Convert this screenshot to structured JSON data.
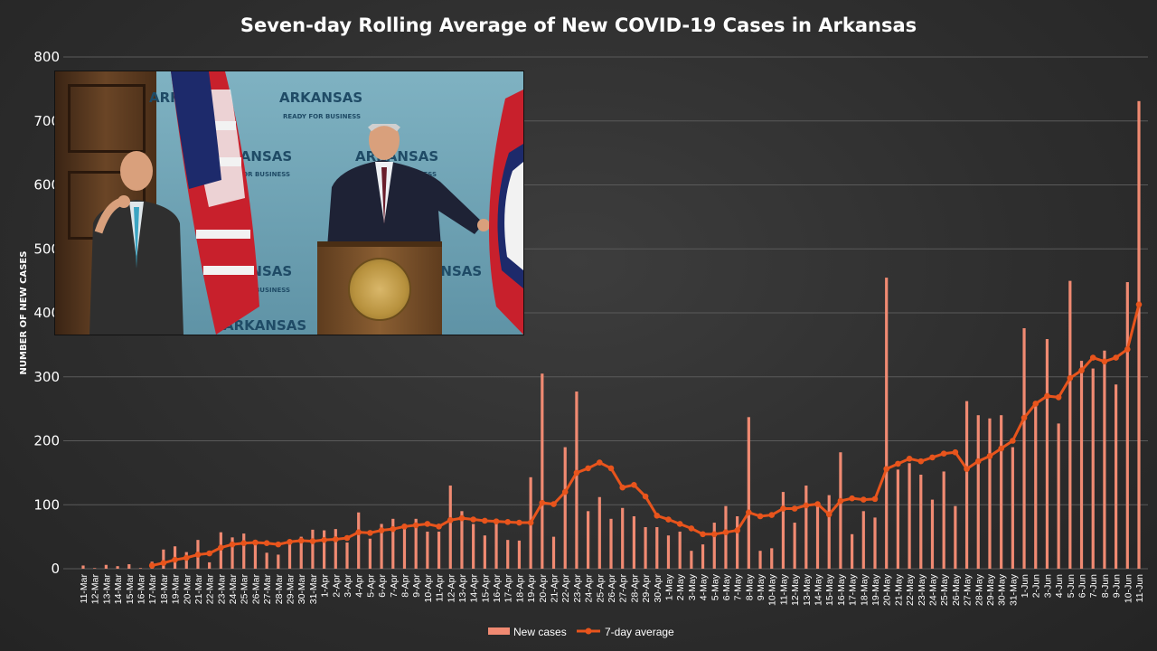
{
  "chart_data": {
    "type": "bar+line",
    "title": "Seven-day Rolling Average of New COVID-19 Cases in Arkansas",
    "ylabel": "NUMBER OF NEW CASES",
    "xlabel": "",
    "ylim": [
      0,
      800
    ],
    "yticks": [
      0,
      100,
      200,
      300,
      400,
      500,
      600,
      700,
      800
    ],
    "grid": true,
    "legend_placement": "bottom",
    "categories": [
      "11-Mar",
      "12-Mar",
      "13-Mar",
      "14-Mar",
      "15-Mar",
      "16-Mar",
      "17-Mar",
      "18-Mar",
      "19-Mar",
      "20-Mar",
      "21-Mar",
      "22-Mar",
      "23-Mar",
      "24-Mar",
      "25-Mar",
      "26-Mar",
      "27-Mar",
      "28-Mar",
      "29-Mar",
      "30-Mar",
      "31-Mar",
      "1-Apr",
      "2-Apr",
      "3-Apr",
      "4-Apr",
      "5-Apr",
      "6-Apr",
      "7-Apr",
      "8-Apr",
      "9-Apr",
      "10-Apr",
      "11-Apr",
      "12-Apr",
      "13-Apr",
      "14-Apr",
      "15-Apr",
      "16-Apr",
      "17-Apr",
      "18-Apr",
      "19-Apr",
      "20-Apr",
      "21-Apr",
      "22-Apr",
      "23-Apr",
      "24-Apr",
      "25-Apr",
      "26-Apr",
      "27-Apr",
      "28-Apr",
      "29-Apr",
      "30-Apr",
      "1-May",
      "2-May",
      "3-May",
      "4-May",
      "5-May",
      "6-May",
      "7-May",
      "8-May",
      "9-May",
      "10-May",
      "11-May",
      "12-May",
      "13-May",
      "14-May",
      "15-May",
      "16-May",
      "17-May",
      "18-May",
      "19-May",
      "20-May",
      "21-May",
      "22-May",
      "23-May",
      "24-May",
      "25-May",
      "26-May",
      "27-May",
      "28-May",
      "29-May",
      "30-May",
      "31-May",
      "1-Jun",
      "2-Jun",
      "3-Jun",
      "4-Jun",
      "5-Jun",
      "6-Jun",
      "7-Jun",
      "8-Jun",
      "9-Jun",
      "10-Jun",
      "11-Jun"
    ],
    "series": [
      {
        "name": "New cases",
        "kind": "bar",
        "color": "#f08a72",
        "values": [
          5,
          1,
          6,
          4,
          7,
          1,
          11,
          30,
          35,
          26,
          45,
          10,
          57,
          49,
          55,
          43,
          25,
          22,
          45,
          50,
          61,
          60,
          62,
          41,
          88,
          47,
          70,
          78,
          65,
          78,
          58,
          58,
          130,
          90,
          70,
          52,
          72,
          45,
          44,
          143,
          305,
          50,
          190,
          277,
          90,
          112,
          78,
          95,
          82,
          65,
          65,
          52,
          58,
          28,
          38,
          72,
          98,
          82,
          237,
          28,
          32,
          120,
          72,
          130,
          98,
          115,
          182,
          54,
          90,
          80,
          455,
          155,
          165,
          147,
          108,
          152,
          98,
          262,
          240,
          235,
          240,
          190,
          376,
          260,
          359,
          227,
          450,
          325,
          313,
          341,
          288,
          448,
          731
        ]
      },
      {
        "name": "7-day average",
        "kind": "line",
        "color": "#e8541c",
        "values": [
          null,
          null,
          null,
          null,
          null,
          null,
          5,
          9,
          14,
          17,
          22,
          24,
          33,
          38,
          40,
          41,
          40,
          38,
          42,
          44,
          43,
          45,
          46,
          48,
          57,
          56,
          60,
          62,
          66,
          68,
          70,
          66,
          76,
          79,
          77,
          75,
          74,
          73,
          72,
          72,
          103,
          101,
          120,
          150,
          157,
          166,
          157,
          127,
          131,
          113,
          83,
          77,
          70,
          63,
          54,
          54,
          57,
          60,
          88,
          82,
          84,
          94,
          94,
          99,
          101,
          85,
          106,
          110,
          108,
          109,
          156,
          164,
          172,
          168,
          174,
          180,
          182,
          156,
          168,
          176,
          188,
          200,
          236,
          258,
          270,
          268,
          298,
          310,
          330,
          324,
          330,
          343,
          413
        ]
      }
    ]
  },
  "inset": {
    "backdrop_word": "ARKANSAS",
    "backdrop_sub": "READY FOR BUSINESS"
  }
}
